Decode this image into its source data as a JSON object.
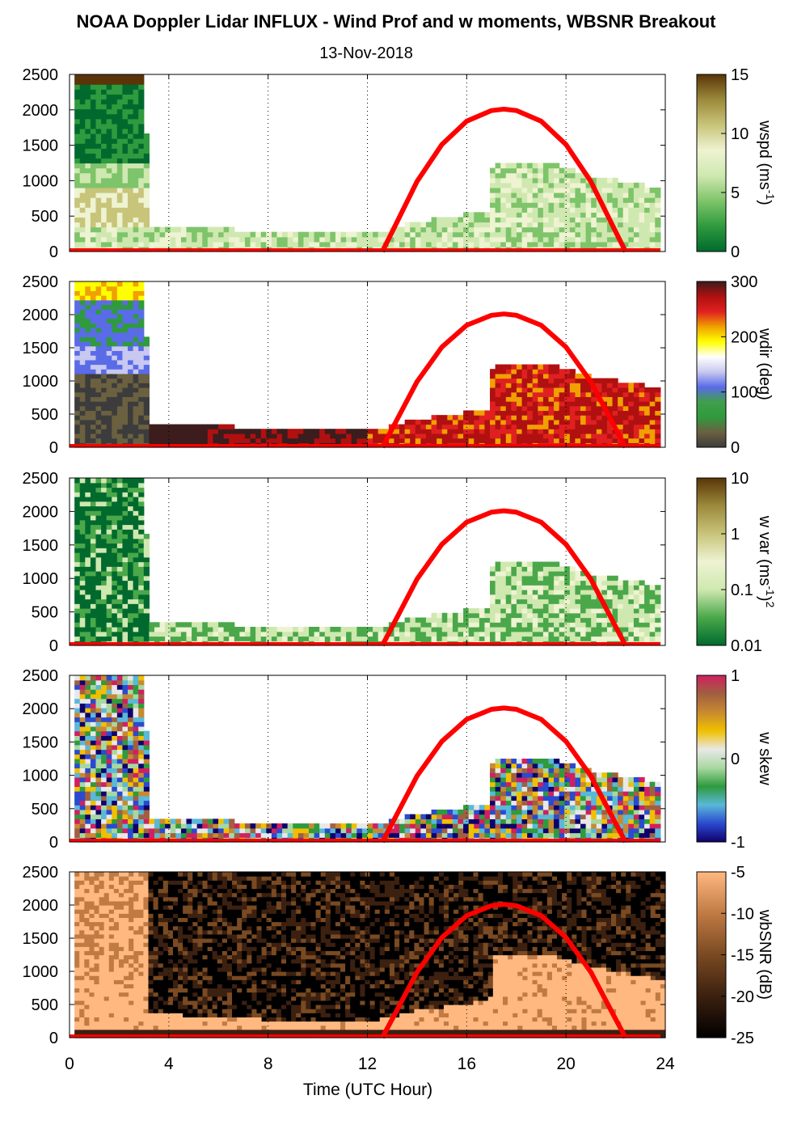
{
  "title": "NOAA Doppler Lidar INFLUX - Wind Prof and w moments, WBSNR Breakout",
  "subtitle": "13-Nov-2018",
  "xlabel": "Time (UTC Hour)",
  "xticks": [
    "0",
    "4",
    "8",
    "12",
    "16",
    "20",
    "24"
  ],
  "yticks": [
    "0",
    "500",
    "1000",
    "1500",
    "2000",
    "2500"
  ],
  "colors": {
    "sun_curve": "#ff0000",
    "wspd_scale": [
      "#006a2e",
      "#2f9a3e",
      "#7ec46a",
      "#cfe8b0",
      "#eef3d2",
      "#c8c47a",
      "#9c8a3c",
      "#5a3508"
    ],
    "wdir_scale": [
      "#3c3c3c",
      "#6b6040",
      "#2f9a3e",
      "#3fa04a",
      "#5a6be8",
      "#c8c8f0",
      "#ffffff",
      "#ffff00",
      "#f0a000",
      "#e02020",
      "#b01010",
      "#3c1c1c"
    ],
    "wvar_scale": [
      "#006a2e",
      "#4aa84a",
      "#cfe8b0",
      "#eef3d2",
      "#c8c47a",
      "#9c8a3c",
      "#5a3508"
    ],
    "wskew_scale": [
      "#10006a",
      "#2a4ad0",
      "#5ab8d8",
      "#2f9a3e",
      "#a8d8a0",
      "#e8e8e8",
      "#f0c000",
      "#c88a30",
      "#a06040",
      "#d02060"
    ],
    "wbsnr_scale": [
      "#000000",
      "#3c2010",
      "#7a4a22",
      "#c07a44",
      "#ffb880"
    ]
  },
  "panels": [
    {
      "id": "wspd",
      "cb_label": "wspd (ms",
      "cb_sup": "-1",
      "cb_close": ")",
      "cb_ticks": [
        "0",
        "5",
        "10",
        "15"
      ]
    },
    {
      "id": "wdir",
      "cb_label": "wdir (deg)",
      "cb_sup": "",
      "cb_close": "",
      "cb_ticks": [
        "0",
        "100",
        "200",
        "300"
      ]
    },
    {
      "id": "wvar",
      "cb_label": "w var (ms",
      "cb_sup": "-1",
      "cb_close": ")",
      "cb_sup2": "2",
      "cb_ticks": [
        "0.01",
        "0.1",
        "1",
        "10"
      ]
    },
    {
      "id": "wskew",
      "cb_label": "w skew",
      "cb_sup": "",
      "cb_close": "",
      "cb_ticks": [
        "-1",
        "0",
        "1"
      ]
    },
    {
      "id": "wbsnr",
      "cb_label": "wbSNR (dB)",
      "cb_sup": "",
      "cb_close": "",
      "cb_ticks": [
        "-25",
        "-20",
        "-15",
        "-10",
        "-5"
      ]
    }
  ],
  "chart_data": {
    "type": "heatmap",
    "x_range": [
      0,
      24
    ],
    "y_range": [
      0,
      2500
    ],
    "sun_elevation_curve": {
      "x": [
        12.6,
        13.0,
        14.0,
        15.0,
        16.0,
        17.0,
        17.5,
        18.0,
        19.0,
        20.0,
        21.0,
        22.0,
        22.4
      ],
      "y": [
        0,
        280,
        990,
        1510,
        1840,
        1990,
        2010,
        1990,
        1840,
        1510,
        990,
        280,
        0
      ]
    },
    "mixing_top_profile": {
      "x": [
        0.2,
        3.0,
        3.1,
        6,
        9,
        12,
        12.6,
        14,
        16.9,
        17.0,
        19.5,
        21,
        22.5,
        24
      ],
      "y": [
        2500,
        2500,
        400,
        350,
        280,
        300,
        320,
        450,
        600,
        1300,
        1250,
        1100,
        1000,
        900
      ]
    }
  }
}
